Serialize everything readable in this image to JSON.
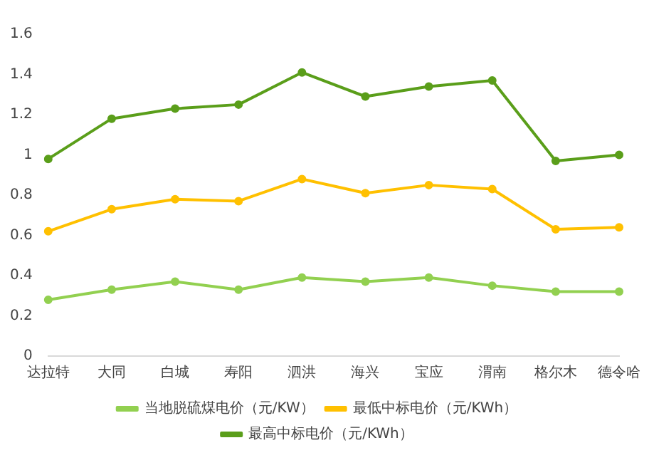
{
  "chart_data": {
    "type": "line",
    "categories": [
      "达拉特",
      "大同",
      "白城",
      "寿阳",
      "泗洪",
      "海兴",
      "宝应",
      "渭南",
      "格尔木",
      "德令哈"
    ],
    "series": [
      {
        "name": "当地脱硫煤电价（元/KW）",
        "color": "#92d050",
        "values": [
          0.28,
          0.33,
          0.37,
          0.33,
          0.39,
          0.37,
          0.39,
          0.35,
          0.32,
          0.32
        ]
      },
      {
        "name": "最低中标电价（元/KWh）",
        "color": "#ffc000",
        "values": [
          0.62,
          0.73,
          0.78,
          0.77,
          0.88,
          0.81,
          0.85,
          0.83,
          0.63,
          0.64
        ]
      },
      {
        "name": "最高中标电价（元/KWh）",
        "color": "#5a9e1a",
        "values": [
          0.98,
          1.18,
          1.23,
          1.25,
          1.41,
          1.29,
          1.34,
          1.37,
          0.97,
          1.0
        ]
      }
    ],
    "ylim": [
      0,
      1.6
    ],
    "yticks": [
      0,
      0.2,
      0.4,
      0.6,
      0.8,
      1,
      1.2,
      1.4,
      1.6
    ],
    "grid": false,
    "legend": "bottom",
    "marker": "circle",
    "line_style": "solid"
  }
}
